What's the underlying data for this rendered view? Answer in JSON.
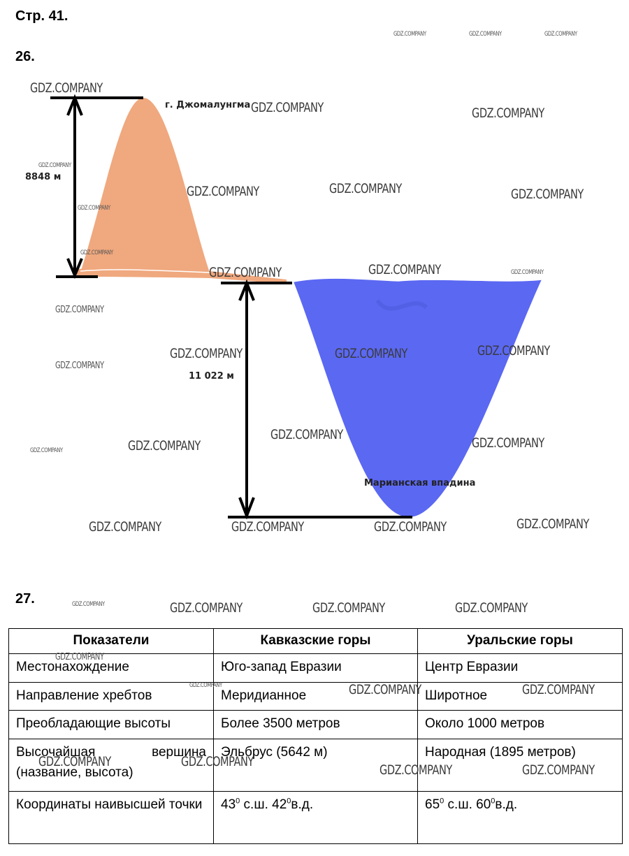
{
  "page_label": "Стр. 41.",
  "task26": {
    "number": "26.",
    "peak_label": "г. Джомалунгма",
    "height_label": "8848 м",
    "depth_label": "11 022 м",
    "trench_label": "Марианская впадина"
  },
  "task27": {
    "number": "27.",
    "headers": [
      "Показатели",
      "Кавказские горы",
      "Уральские горы"
    ],
    "rows": [
      {
        "indicator": "Местонахождение",
        "caucasus": "Юго-запад Евразии",
        "ural": "Центр Евразии"
      },
      {
        "indicator": "Направление хребтов",
        "caucasus": "Меридианное",
        "ural": "Широтное"
      },
      {
        "indicator": "Преобладающие высоты",
        "caucasus": "Более 3500 метров",
        "ural": "Около 1000 метров"
      },
      {
        "indicator": "Высочайшая вершина (название, высота)",
        "caucasus": "Эльбрус (5642 м)",
        "ural": "Народная (1895 метров)"
      },
      {
        "indicator": "Координаты наивысшей точки",
        "caucasus_lat": "43",
        "caucasus_mid": " с.ш. 42",
        "caucasus_end": "в.д.",
        "ural_lat": "65",
        "ural_mid": " с.ш. 60",
        "ural_end": "в.д.",
        "degree": "0"
      }
    ]
  },
  "watermark": "GDZ.COMPANY"
}
